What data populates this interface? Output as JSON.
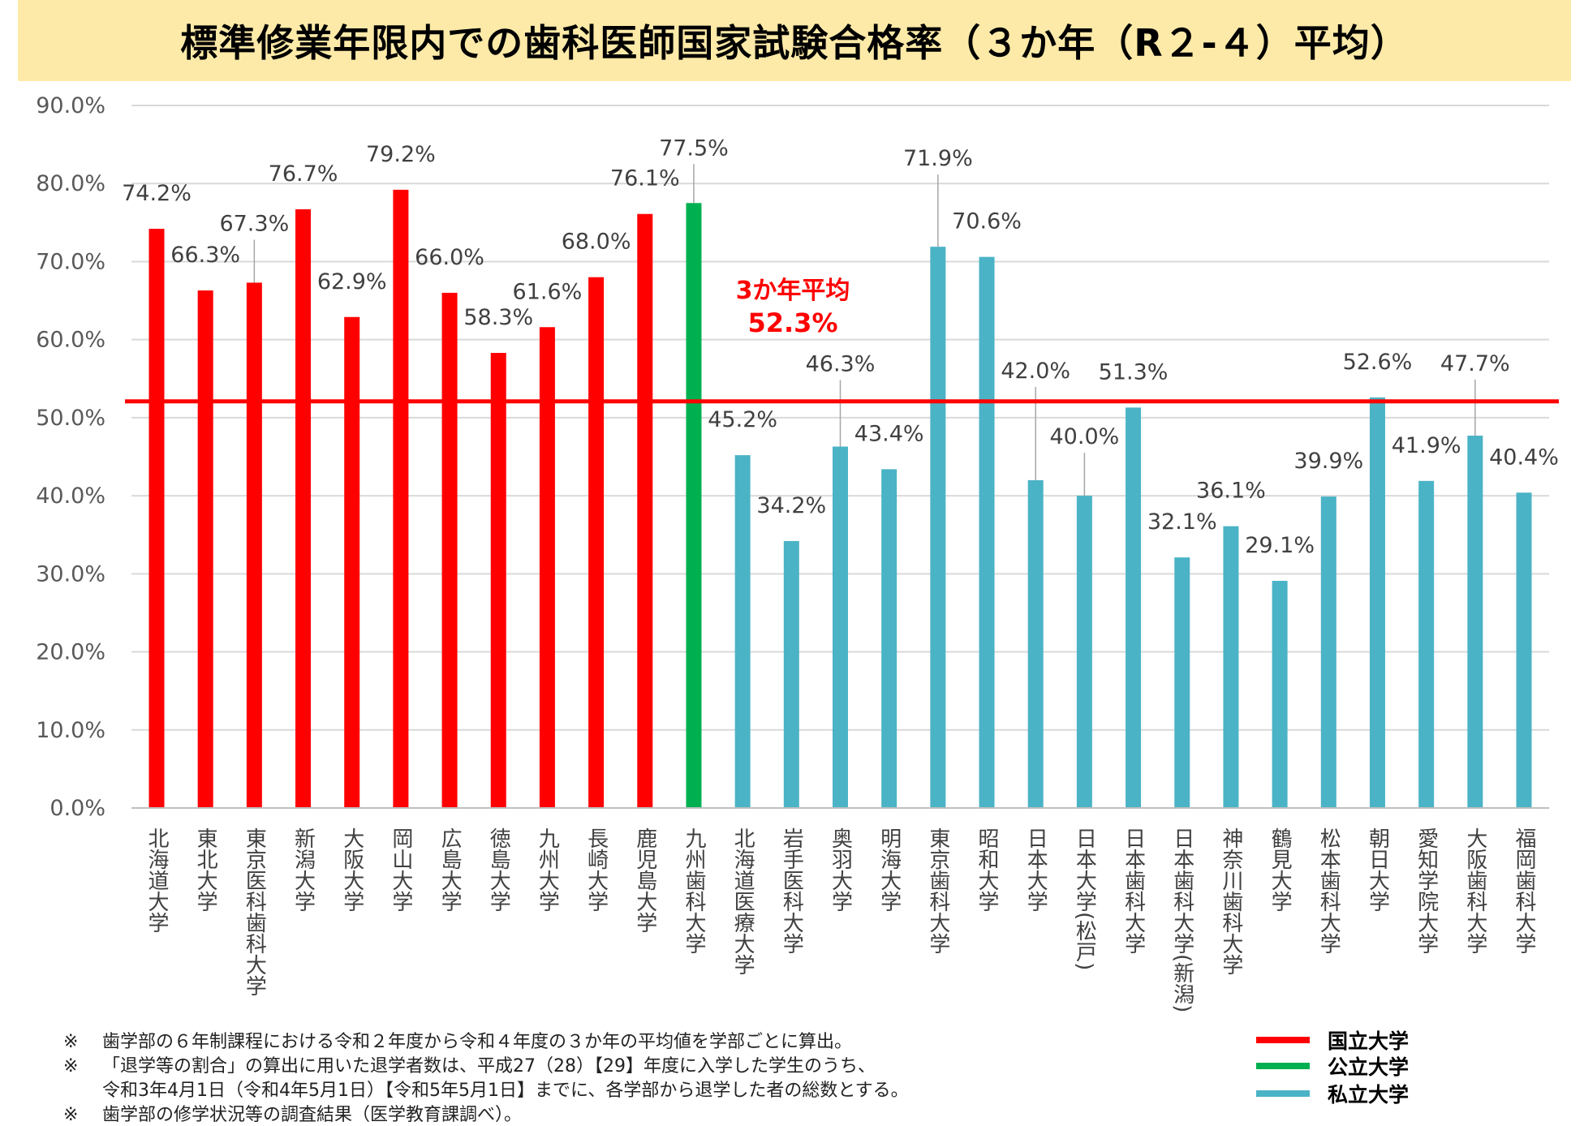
{
  "chart_data": {
    "type": "bar",
    "title": "標準修業年限内での歯科医師国家試験合格率（３か年（R２-４）平均）",
    "xlabel": "",
    "ylabel": "",
    "ylim": [
      0,
      90
    ],
    "yticks": [
      "0.0%",
      "10.0%",
      "20.0%",
      "30.0%",
      "40.0%",
      "50.0%",
      "60.0%",
      "70.0%",
      "80.0%",
      "90.0%"
    ],
    "grid": true,
    "legend_position": "bottom-right",
    "categories": [
      "北海道大学",
      "東北大学",
      "東京医科歯科大学",
      "新潟大学",
      "大阪大学",
      "岡山大学",
      "広島大学",
      "徳島大学",
      "九州大学",
      "長崎大学",
      "鹿児島大学",
      "九州歯科大学",
      "北海道医療大学",
      "岩手医科大学",
      "奥羽大学",
      "明海大学",
      "東京歯科大学",
      "昭和大学",
      "日本大学",
      "日本大学(松戸)",
      "日本歯科大学",
      "日本歯科大学(新潟)",
      "神奈川歯科大学",
      "鶴見大学",
      "松本歯科大学",
      "朝日大学",
      "愛知学院大学",
      "大阪歯科大学",
      "福岡歯科大学"
    ],
    "values": [
      74.2,
      66.3,
      67.3,
      76.7,
      62.9,
      79.2,
      66.0,
      58.3,
      61.6,
      68.0,
      76.1,
      77.5,
      45.2,
      34.2,
      46.3,
      43.4,
      71.9,
      70.6,
      42.0,
      40.0,
      51.3,
      32.1,
      36.1,
      29.1,
      39.9,
      52.6,
      41.9,
      47.7,
      40.4
    ],
    "data_labels": [
      "74.2%",
      "66.3%",
      "67.3%",
      "76.7%",
      "62.9%",
      "79.2%",
      "66.0%",
      "58.3%",
      "61.6%",
      "68.0%",
      "76.1%",
      "77.5%",
      "45.2%",
      "34.2%",
      "46.3%",
      "43.4%",
      "71.9%",
      "70.6%",
      "42.0%",
      "40.0%",
      "51.3%",
      "32.1%",
      "36.1%",
      "29.1%",
      "39.9%",
      "52.6%",
      "41.9%",
      "47.7%",
      "40.4%"
    ],
    "groups": [
      "national",
      "national",
      "national",
      "national",
      "national",
      "national",
      "national",
      "national",
      "national",
      "national",
      "national",
      "public",
      "private",
      "private",
      "private",
      "private",
      "private",
      "private",
      "private",
      "private",
      "private",
      "private",
      "private",
      "private",
      "private",
      "private",
      "private",
      "private",
      "private"
    ],
    "average": {
      "value": 52.3,
      "label_line1": "3か年平均",
      "label_line2": "52.3%",
      "color": "#ff0000"
    },
    "legend": [
      {
        "key": "national",
        "label": "国立大学",
        "color": "#ff0000"
      },
      {
        "key": "public",
        "label": "公立大学",
        "color": "#00b050"
      },
      {
        "key": "private",
        "label": "私立大学",
        "color": "#4bb3c6"
      }
    ]
  },
  "footnotes": [
    {
      "mark": "※",
      "text": "歯学部の６年制課程における令和２年度から令和４年度の３か年の平均値を学部ごとに算出。"
    },
    {
      "mark": "※",
      "text": "「退学等の割合」の算出に用いた退学者数は、平成27（28）【29】年度に入学した学生のうち、"
    },
    {
      "mark": "",
      "text": "令和3年4月1日（令和4年5月1日）【令和5年5月1日】までに、各学部から退学した者の総数とする。"
    },
    {
      "mark": "※",
      "text": "歯学部の修学状況等の調査結果（医学教育課調べ）。"
    }
  ],
  "colors": {
    "title_background": "#fdeaa8",
    "grid": "#d9d9d9",
    "tick_text": "#595959"
  }
}
